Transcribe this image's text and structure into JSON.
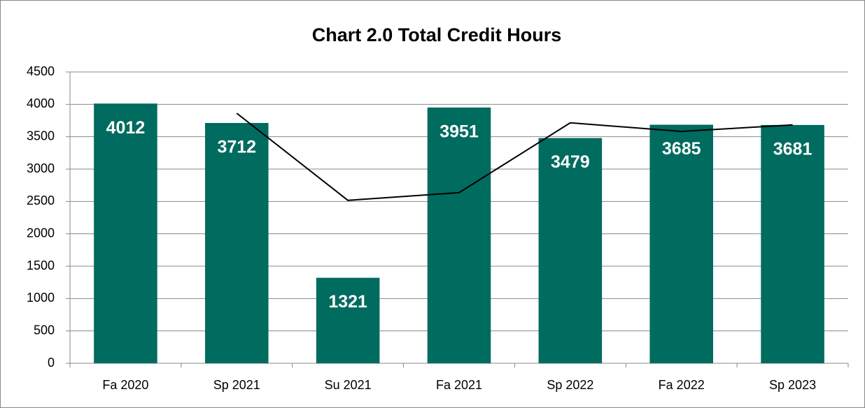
{
  "chart_data": {
    "type": "bar",
    "title": "Chart 2.0 Total Credit Hours",
    "categories": [
      "Fa 2020",
      "Sp 2021",
      "Su 2021",
      "Fa 2021",
      "Sp 2022",
      "Fa 2022",
      "Sp 2023"
    ],
    "series": [
      {
        "type": "bar",
        "color": "#006b5f",
        "label_color": "#ffffff",
        "values": [
          4012,
          3712,
          1321,
          3951,
          3479,
          3685,
          3681
        ]
      },
      {
        "type": "line",
        "color": "#000000",
        "values": [
          null,
          3862,
          2516.5,
          2636,
          3715,
          3582,
          3683
        ]
      }
    ],
    "ylim": [
      0,
      4500
    ],
    "yticks": [
      0,
      500,
      1000,
      1500,
      2000,
      2500,
      3000,
      3500,
      4000,
      4500
    ],
    "grid": true
  }
}
